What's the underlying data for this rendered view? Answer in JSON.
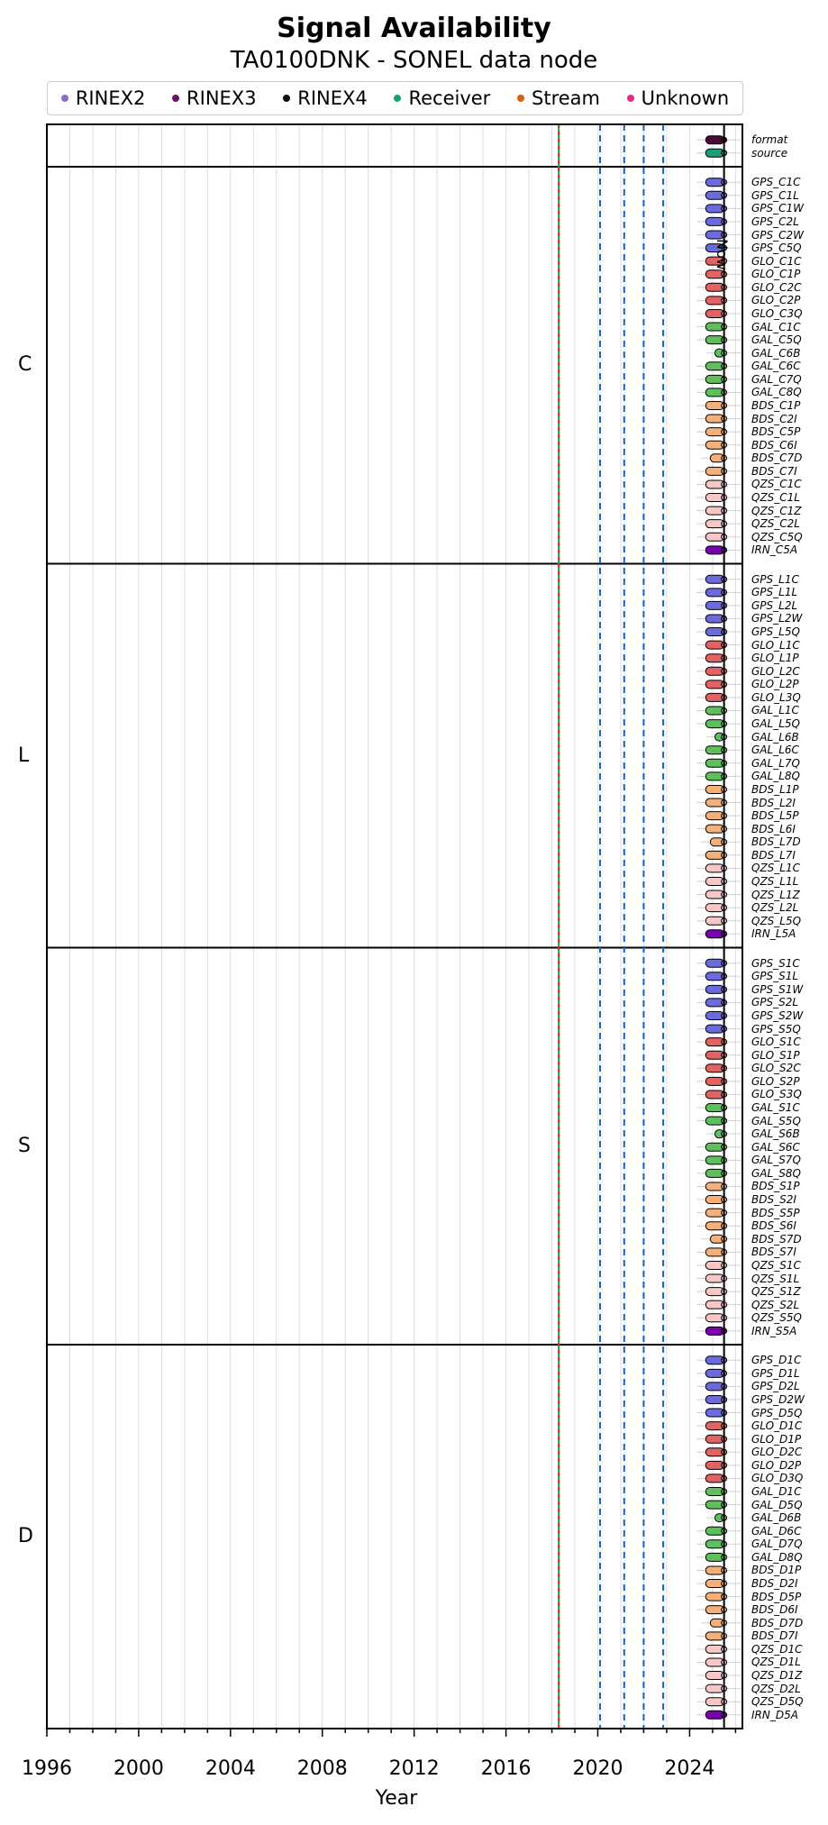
{
  "title": "Signal Availability",
  "subtitle": "TA0100DNK - SONEL data node",
  "legend": [
    {
      "name": "RINEX2",
      "color": "#8c6bc9"
    },
    {
      "name": "RINEX3",
      "color": "#6a0f6b"
    },
    {
      "name": "RINEX4",
      "color": "#1a0a1a"
    },
    {
      "name": "Receiver",
      "color": "#1b9e77"
    },
    {
      "name": "Stream",
      "color": "#d95f02"
    },
    {
      "name": "Unknown",
      "color": "#e7298a"
    }
  ],
  "now_label": "Now",
  "chart_data": {
    "type": "timeline",
    "xlabel": "Year",
    "xlim": [
      1996,
      2026.3
    ],
    "xticks": [
      1996,
      2000,
      2004,
      2008,
      2012,
      2016,
      2020,
      2024
    ],
    "reference_lines": {
      "solid": {
        "x": 2018.3,
        "colors": [
          "#2ca02c",
          "#d62728"
        ]
      },
      "dashed": {
        "x": [
          2020.1,
          2021.15,
          2022.0,
          2022.85
        ],
        "color": "#1f5fbf"
      },
      "now": 2025.5
    },
    "system_colors": {
      "GPS": "#6b6bdb",
      "GLO": "#e06464",
      "GAL": "#5fbf5f",
      "BDS": "#f5b07a",
      "QZS": "#f7c6c6",
      "IRN": "#7a00b0"
    },
    "groups": [
      {
        "name": "",
        "rows": [
          {
            "label": "format",
            "start": 2024.7,
            "end": 2025.5,
            "color": "#4a0a3a"
          },
          {
            "label": "source",
            "start": 2024.7,
            "end": 2025.5,
            "color": "#1b9e77"
          }
        ]
      },
      {
        "name": "C",
        "rows": [
          {
            "label": "GPS_C1C",
            "start": 2024.7,
            "end": 2025.5
          },
          {
            "label": "GPS_C1L",
            "start": 2024.7,
            "end": 2025.5
          },
          {
            "label": "GPS_C1W",
            "start": 2024.7,
            "end": 2025.5
          },
          {
            "label": "GPS_C2L",
            "start": 2024.7,
            "end": 2025.5
          },
          {
            "label": "GPS_C2W",
            "start": 2024.7,
            "end": 2025.5
          },
          {
            "label": "GPS_C5Q",
            "start": 2024.7,
            "end": 2025.5
          },
          {
            "label": "GLO_C1C",
            "start": 2024.7,
            "end": 2025.5
          },
          {
            "label": "GLO_C1P",
            "start": 2024.7,
            "end": 2025.5
          },
          {
            "label": "GLO_C2C",
            "start": 2024.7,
            "end": 2025.5
          },
          {
            "label": "GLO_C2P",
            "start": 2024.7,
            "end": 2025.5
          },
          {
            "label": "GLO_C3Q",
            "start": 2024.7,
            "end": 2025.5
          },
          {
            "label": "GAL_C1C",
            "start": 2024.7,
            "end": 2025.5
          },
          {
            "label": "GAL_C5Q",
            "start": 2024.7,
            "end": 2025.5
          },
          {
            "label": "GAL_C6B",
            "start": 2025.1,
            "end": 2025.5
          },
          {
            "label": "GAL_C6C",
            "start": 2024.7,
            "end": 2025.5
          },
          {
            "label": "GAL_C7Q",
            "start": 2024.7,
            "end": 2025.5
          },
          {
            "label": "GAL_C8Q",
            "start": 2024.7,
            "end": 2025.5
          },
          {
            "label": "BDS_C1P",
            "start": 2024.7,
            "end": 2025.5
          },
          {
            "label": "BDS_C2I",
            "start": 2024.7,
            "end": 2025.5
          },
          {
            "label": "BDS_C5P",
            "start": 2024.7,
            "end": 2025.5
          },
          {
            "label": "BDS_C6I",
            "start": 2024.7,
            "end": 2025.5
          },
          {
            "label": "BDS_C7D",
            "start": 2024.9,
            "end": 2025.5
          },
          {
            "label": "BDS_C7I",
            "start": 2024.7,
            "end": 2025.5
          },
          {
            "label": "QZS_C1C",
            "start": 2024.7,
            "end": 2025.5
          },
          {
            "label": "QZS_C1L",
            "start": 2024.7,
            "end": 2025.5
          },
          {
            "label": "QZS_C1Z",
            "start": 2024.7,
            "end": 2025.5
          },
          {
            "label": "QZS_C2L",
            "start": 2024.7,
            "end": 2025.5
          },
          {
            "label": "QZS_C5Q",
            "start": 2024.7,
            "end": 2025.5
          },
          {
            "label": "IRN_C5A",
            "start": 2024.7,
            "end": 2025.5
          }
        ]
      },
      {
        "name": "L",
        "rows": [
          {
            "label": "GPS_L1C",
            "start": 2024.7,
            "end": 2025.5
          },
          {
            "label": "GPS_L1L",
            "start": 2024.7,
            "end": 2025.5
          },
          {
            "label": "GPS_L2L",
            "start": 2024.7,
            "end": 2025.5
          },
          {
            "label": "GPS_L2W",
            "start": 2024.7,
            "end": 2025.5
          },
          {
            "label": "GPS_L5Q",
            "start": 2024.7,
            "end": 2025.5
          },
          {
            "label": "GLO_L1C",
            "start": 2024.7,
            "end": 2025.5
          },
          {
            "label": "GLO_L1P",
            "start": 2024.7,
            "end": 2025.5
          },
          {
            "label": "GLO_L2C",
            "start": 2024.7,
            "end": 2025.5
          },
          {
            "label": "GLO_L2P",
            "start": 2024.7,
            "end": 2025.5
          },
          {
            "label": "GLO_L3Q",
            "start": 2024.7,
            "end": 2025.5
          },
          {
            "label": "GAL_L1C",
            "start": 2024.7,
            "end": 2025.5
          },
          {
            "label": "GAL_L5Q",
            "start": 2024.7,
            "end": 2025.5
          },
          {
            "label": "GAL_L6B",
            "start": 2025.1,
            "end": 2025.5
          },
          {
            "label": "GAL_L6C",
            "start": 2024.7,
            "end": 2025.5
          },
          {
            "label": "GAL_L7Q",
            "start": 2024.7,
            "end": 2025.5
          },
          {
            "label": "GAL_L8Q",
            "start": 2024.7,
            "end": 2025.5
          },
          {
            "label": "BDS_L1P",
            "start": 2024.7,
            "end": 2025.5
          },
          {
            "label": "BDS_L2I",
            "start": 2024.7,
            "end": 2025.5
          },
          {
            "label": "BDS_L5P",
            "start": 2024.7,
            "end": 2025.5
          },
          {
            "label": "BDS_L6I",
            "start": 2024.7,
            "end": 2025.5
          },
          {
            "label": "BDS_L7D",
            "start": 2024.9,
            "end": 2025.5
          },
          {
            "label": "BDS_L7I",
            "start": 2024.7,
            "end": 2025.5
          },
          {
            "label": "QZS_L1C",
            "start": 2024.7,
            "end": 2025.5
          },
          {
            "label": "QZS_L1L",
            "start": 2024.7,
            "end": 2025.5
          },
          {
            "label": "QZS_L1Z",
            "start": 2024.7,
            "end": 2025.5
          },
          {
            "label": "QZS_L2L",
            "start": 2024.7,
            "end": 2025.5
          },
          {
            "label": "QZS_L5Q",
            "start": 2024.7,
            "end": 2025.5
          },
          {
            "label": "IRN_L5A",
            "start": 2024.7,
            "end": 2025.5
          }
        ]
      },
      {
        "name": "S",
        "rows": [
          {
            "label": "GPS_S1C",
            "start": 2024.7,
            "end": 2025.5
          },
          {
            "label": "GPS_S1L",
            "start": 2024.7,
            "end": 2025.5
          },
          {
            "label": "GPS_S1W",
            "start": 2024.7,
            "end": 2025.5
          },
          {
            "label": "GPS_S2L",
            "start": 2024.7,
            "end": 2025.5
          },
          {
            "label": "GPS_S2W",
            "start": 2024.7,
            "end": 2025.5
          },
          {
            "label": "GPS_S5Q",
            "start": 2024.7,
            "end": 2025.5
          },
          {
            "label": "GLO_S1C",
            "start": 2024.7,
            "end": 2025.5
          },
          {
            "label": "GLO_S1P",
            "start": 2024.7,
            "end": 2025.5
          },
          {
            "label": "GLO_S2C",
            "start": 2024.7,
            "end": 2025.5
          },
          {
            "label": "GLO_S2P",
            "start": 2024.7,
            "end": 2025.5
          },
          {
            "label": "GLO_S3Q",
            "start": 2024.7,
            "end": 2025.5
          },
          {
            "label": "GAL_S1C",
            "start": 2024.7,
            "end": 2025.5
          },
          {
            "label": "GAL_S5Q",
            "start": 2024.7,
            "end": 2025.5
          },
          {
            "label": "GAL_S6B",
            "start": 2025.1,
            "end": 2025.5
          },
          {
            "label": "GAL_S6C",
            "start": 2024.7,
            "end": 2025.5
          },
          {
            "label": "GAL_S7Q",
            "start": 2024.7,
            "end": 2025.5
          },
          {
            "label": "GAL_S8Q",
            "start": 2024.7,
            "end": 2025.5
          },
          {
            "label": "BDS_S1P",
            "start": 2024.7,
            "end": 2025.5
          },
          {
            "label": "BDS_S2I",
            "start": 2024.7,
            "end": 2025.5
          },
          {
            "label": "BDS_S5P",
            "start": 2024.7,
            "end": 2025.5
          },
          {
            "label": "BDS_S6I",
            "start": 2024.7,
            "end": 2025.5
          },
          {
            "label": "BDS_S7D",
            "start": 2024.9,
            "end": 2025.5
          },
          {
            "label": "BDS_S7I",
            "start": 2024.7,
            "end": 2025.5
          },
          {
            "label": "QZS_S1C",
            "start": 2024.7,
            "end": 2025.5
          },
          {
            "label": "QZS_S1L",
            "start": 2024.7,
            "end": 2025.5
          },
          {
            "label": "QZS_S1Z",
            "start": 2024.7,
            "end": 2025.5
          },
          {
            "label": "QZS_S2L",
            "start": 2024.7,
            "end": 2025.5
          },
          {
            "label": "QZS_S5Q",
            "start": 2024.7,
            "end": 2025.5
          },
          {
            "label": "IRN_S5A",
            "start": 2024.7,
            "end": 2025.5
          }
        ]
      },
      {
        "name": "D",
        "rows": [
          {
            "label": "GPS_D1C",
            "start": 2024.7,
            "end": 2025.5
          },
          {
            "label": "GPS_D1L",
            "start": 2024.7,
            "end": 2025.5
          },
          {
            "label": "GPS_D2L",
            "start": 2024.7,
            "end": 2025.5
          },
          {
            "label": "GPS_D2W",
            "start": 2024.7,
            "end": 2025.5
          },
          {
            "label": "GPS_D5Q",
            "start": 2024.7,
            "end": 2025.5
          },
          {
            "label": "GLO_D1C",
            "start": 2024.7,
            "end": 2025.5
          },
          {
            "label": "GLO_D1P",
            "start": 2024.7,
            "end": 2025.5
          },
          {
            "label": "GLO_D2C",
            "start": 2024.7,
            "end": 2025.5
          },
          {
            "label": "GLO_D2P",
            "start": 2024.7,
            "end": 2025.5
          },
          {
            "label": "GLO_D3Q",
            "start": 2024.7,
            "end": 2025.5
          },
          {
            "label": "GAL_D1C",
            "start": 2024.7,
            "end": 2025.5
          },
          {
            "label": "GAL_D5Q",
            "start": 2024.7,
            "end": 2025.5
          },
          {
            "label": "GAL_D6B",
            "start": 2025.1,
            "end": 2025.5
          },
          {
            "label": "GAL_D6C",
            "start": 2024.7,
            "end": 2025.5
          },
          {
            "label": "GAL_D7Q",
            "start": 2024.7,
            "end": 2025.5
          },
          {
            "label": "GAL_D8Q",
            "start": 2024.7,
            "end": 2025.5
          },
          {
            "label": "BDS_D1P",
            "start": 2024.7,
            "end": 2025.5
          },
          {
            "label": "BDS_D2I",
            "start": 2024.7,
            "end": 2025.5
          },
          {
            "label": "BDS_D5P",
            "start": 2024.7,
            "end": 2025.5
          },
          {
            "label": "BDS_D6I",
            "start": 2024.7,
            "end": 2025.5
          },
          {
            "label": "BDS_D7D",
            "start": 2024.9,
            "end": 2025.5
          },
          {
            "label": "BDS_D7I",
            "start": 2024.7,
            "end": 2025.5
          },
          {
            "label": "QZS_D1C",
            "start": 2024.7,
            "end": 2025.5
          },
          {
            "label": "QZS_D1L",
            "start": 2024.7,
            "end": 2025.5
          },
          {
            "label": "QZS_D1Z",
            "start": 2024.7,
            "end": 2025.5
          },
          {
            "label": "QZS_D2L",
            "start": 2024.7,
            "end": 2025.5
          },
          {
            "label": "QZS_D5Q",
            "start": 2024.7,
            "end": 2025.5
          },
          {
            "label": "IRN_D5A",
            "start": 2024.7,
            "end": 2025.5
          }
        ]
      }
    ]
  }
}
